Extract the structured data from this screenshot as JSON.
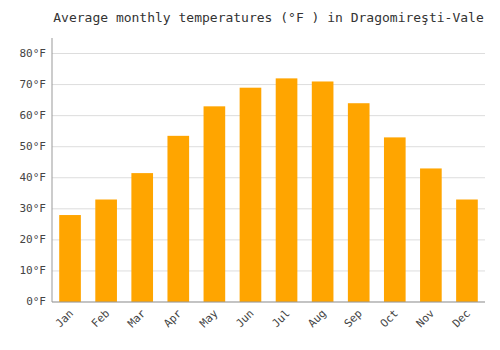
{
  "chart_data": {
    "type": "bar",
    "title": "Average monthly temperatures (°F ) in Dragomireşti-Vale",
    "categories": [
      "Jan",
      "Feb",
      "Mar",
      "Apr",
      "May",
      "Jun",
      "Jul",
      "Aug",
      "Sep",
      "Oct",
      "Nov",
      "Dec"
    ],
    "values": [
      28.0,
      33.0,
      41.5,
      53.5,
      63.0,
      69.0,
      72.0,
      71.0,
      64.0,
      53.0,
      43.0,
      33.0
    ],
    "color": "#FFA500",
    "ylim": [
      0,
      85
    ],
    "yticks": [
      {
        "value": 0,
        "label": "0°F"
      },
      {
        "value": 10,
        "label": "10°F"
      },
      {
        "value": 20,
        "label": "20°F"
      },
      {
        "value": 30,
        "label": "30°F"
      },
      {
        "value": 40,
        "label": "40°F"
      },
      {
        "value": 50,
        "label": "50°F"
      },
      {
        "value": 60,
        "label": "60°F"
      },
      {
        "value": 70,
        "label": "70°F"
      },
      {
        "value": 80,
        "label": "80°F"
      }
    ],
    "grid": true
  }
}
